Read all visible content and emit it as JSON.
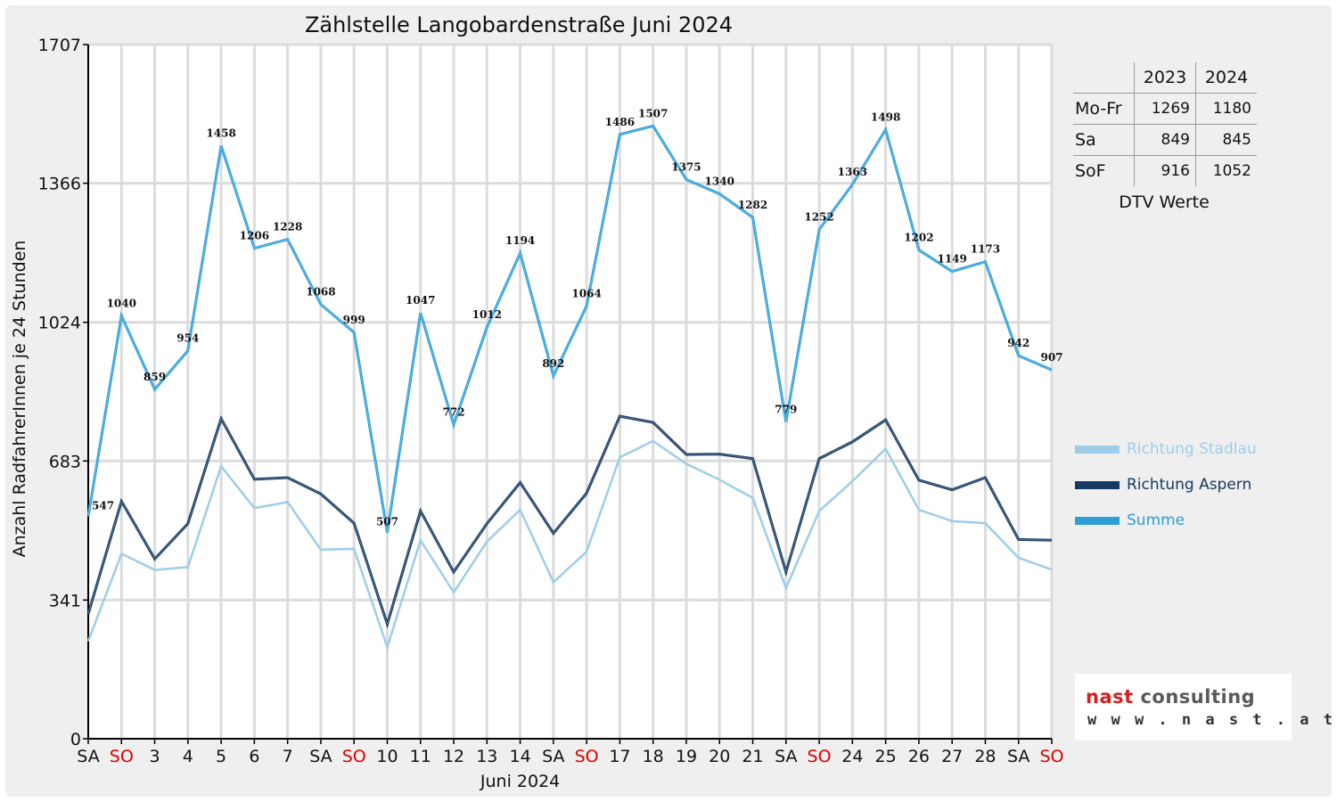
{
  "chart_data": {
    "type": "line",
    "title": "Zählstelle Langobardenstraße Juni 2024",
    "xlabel": "Juni 2024",
    "ylabel": "Anzahl RadfahrerInnen je 24 Stunden",
    "ylim": [
      0,
      1707
    ],
    "yticks": [
      0,
      341,
      683,
      1024,
      1366,
      1707
    ],
    "grid": true,
    "categories": [
      "SA",
      "SO",
      "3",
      "4",
      "5",
      "6",
      "7",
      "SA",
      "SO",
      "10",
      "11",
      "12",
      "13",
      "14",
      "SA",
      "SO",
      "17",
      "18",
      "19",
      "20",
      "21",
      "SA",
      "SO",
      "24",
      "25",
      "26",
      "27",
      "28",
      "SA",
      "SO"
    ],
    "weekend_categories": [
      "SO"
    ],
    "weekend_color": "#e00000",
    "series": [
      {
        "name": "Richtung Stadlau",
        "color": "#9dcde9",
        "values": [
          240,
          455,
          415,
          422,
          670,
          567,
          582,
          465,
          467,
          225,
          488,
          360,
          485,
          563,
          385,
          460,
          692,
          732,
          676,
          637,
          592,
          370,
          560,
          633,
          713,
          563,
          535,
          530,
          445,
          416
        ]
      },
      {
        "name": "Richtung Aspern",
        "color": "#163a62",
        "values": [
          307,
          584,
          442,
          529,
          787,
          638,
          642,
          602,
          530,
          282,
          560,
          410,
          529,
          630,
          505,
          604,
          793,
          778,
          699,
          700,
          689,
          410,
          689,
          730,
          784,
          636,
          612,
          642,
          490,
          488
        ]
      },
      {
        "name": "Summe",
        "color": "#2c9fd9",
        "labels": true,
        "values": [
          547,
          1040,
          859,
          954,
          1458,
          1206,
          1228,
          1068,
          999,
          507,
          1047,
          772,
          1012,
          1194,
          892,
          1064,
          1486,
          1507,
          1375,
          1340,
          1282,
          779,
          1252,
          1363,
          1498,
          1202,
          1149,
          1173,
          942,
          907
        ]
      }
    ]
  },
  "dtv": {
    "header": [
      "",
      "2023",
      "2024"
    ],
    "rows": [
      {
        "label": "Mo-Fr",
        "v2023": "1269",
        "v2024": "1180"
      },
      {
        "label": "Sa",
        "v2023": "849",
        "v2024": "845"
      },
      {
        "label": "SoF",
        "v2023": "916",
        "v2024": "1052"
      }
    ],
    "caption": "DTV Werte"
  },
  "logo": {
    "brand": "nast",
    "brand_suffix": "consulting",
    "url": "w w w . n a s t . a t",
    "brand_color": "#d62020"
  }
}
